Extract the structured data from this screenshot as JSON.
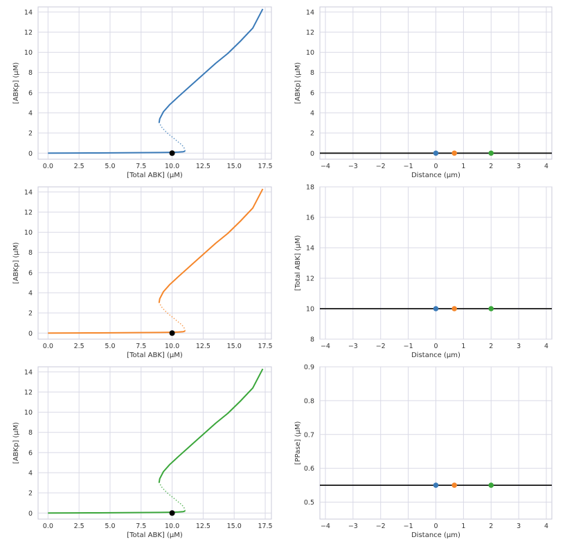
{
  "colors": {
    "series": [
      "#3a7ab8",
      "#f5862a",
      "#3aa63a"
    ],
    "line": "#111111",
    "steady_state": "#000000",
    "grid": "#d9d9e6",
    "frame": "#c8c8d8"
  },
  "chart_data": [
    {
      "type": "line",
      "color_index": 0,
      "xlabel": "[Total ABK] (μM)",
      "ylabel": "[ABKp] (μM)",
      "xlim": [
        -0.8,
        18
      ],
      "ylim": [
        -0.6,
        14.5
      ],
      "xticks": [
        0,
        2.5,
        5,
        7.5,
        10,
        12.5,
        15,
        17.5
      ],
      "xtick_labels": [
        "0.0",
        "2.5",
        "5.0",
        "7.5",
        "10.0",
        "12.5",
        "15.0",
        "17.5"
      ],
      "yticks": [
        0,
        2,
        4,
        6,
        8,
        10,
        12,
        14
      ],
      "ytick_labels": [
        "0",
        "2",
        "4",
        "6",
        "8",
        "10",
        "12",
        "14"
      ],
      "grid": true,
      "curves": {
        "lower_stable": [
          [
            0,
            0
          ],
          [
            2,
            0.01
          ],
          [
            4,
            0.02
          ],
          [
            6,
            0.03
          ],
          [
            8,
            0.05
          ],
          [
            9,
            0.06
          ],
          [
            10,
            0.08
          ],
          [
            10.5,
            0.1
          ],
          [
            10.9,
            0.14
          ],
          [
            11.05,
            0.2
          ]
        ],
        "middle_unstable": [
          [
            11.05,
            0.2
          ],
          [
            11,
            0.45
          ],
          [
            10.8,
            0.8
          ],
          [
            10.4,
            1.2
          ],
          [
            10,
            1.6
          ],
          [
            9.6,
            2.0
          ],
          [
            9.2,
            2.5
          ],
          [
            8.95,
            3.0
          ]
        ],
        "upper_stable": [
          [
            8.95,
            3.0
          ],
          [
            9.0,
            3.4
          ],
          [
            9.3,
            4.1
          ],
          [
            9.8,
            4.8
          ],
          [
            10.5,
            5.6
          ],
          [
            11.5,
            6.7
          ],
          [
            12.5,
            7.8
          ],
          [
            13.5,
            8.9
          ],
          [
            14.5,
            9.9
          ],
          [
            15.5,
            11.1
          ],
          [
            16.5,
            12.4
          ],
          [
            17.3,
            14.3
          ]
        ]
      },
      "steady_state_point": [
        10,
        0
      ]
    },
    {
      "type": "line",
      "xlabel": "Distance (μm)",
      "ylabel": "[ABKp] (μM)",
      "xlim": [
        -4.2,
        4.2
      ],
      "ylim": [
        -0.6,
        14.5
      ],
      "xticks": [
        -4,
        -3,
        -2,
        -1,
        0,
        1,
        2,
        3,
        4
      ],
      "xtick_labels": [
        "−4",
        "−3",
        "−2",
        "−1",
        "0",
        "1",
        "2",
        "3",
        "4"
      ],
      "yticks": [
        0,
        2,
        4,
        6,
        8,
        10,
        12,
        14
      ],
      "ytick_labels": [
        "0",
        "2",
        "4",
        "6",
        "8",
        "10",
        "12",
        "14"
      ],
      "grid": true,
      "profile": [
        [
          -4.2,
          0
        ],
        [
          4.2,
          0
        ]
      ],
      "points": [
        {
          "x": 0,
          "y": 0,
          "color_index": 0
        },
        {
          "x": 0.67,
          "y": 0,
          "color_index": 1
        },
        {
          "x": 2,
          "y": 0,
          "color_index": 2
        }
      ]
    },
    {
      "type": "line",
      "color_index": 1,
      "xlabel": "[Total ABK] (μM)",
      "ylabel": "[ABKp] (μM)",
      "xlim": [
        -0.8,
        18
      ],
      "ylim": [
        -0.6,
        14.5
      ],
      "xticks": [
        0,
        2.5,
        5,
        7.5,
        10,
        12.5,
        15,
        17.5
      ],
      "xtick_labels": [
        "0.0",
        "2.5",
        "5.0",
        "7.5",
        "10.0",
        "12.5",
        "15.0",
        "17.5"
      ],
      "yticks": [
        0,
        2,
        4,
        6,
        8,
        10,
        12,
        14
      ],
      "ytick_labels": [
        "0",
        "2",
        "4",
        "6",
        "8",
        "10",
        "12",
        "14"
      ],
      "grid": true,
      "curves": {
        "lower_stable": [
          [
            0,
            0
          ],
          [
            2,
            0.01
          ],
          [
            4,
            0.02
          ],
          [
            6,
            0.03
          ],
          [
            8,
            0.05
          ],
          [
            9,
            0.06
          ],
          [
            10,
            0.08
          ],
          [
            10.5,
            0.1
          ],
          [
            10.9,
            0.14
          ],
          [
            11.05,
            0.2
          ]
        ],
        "middle_unstable": [
          [
            11.05,
            0.2
          ],
          [
            11,
            0.45
          ],
          [
            10.8,
            0.8
          ],
          [
            10.4,
            1.2
          ],
          [
            10,
            1.6
          ],
          [
            9.6,
            2.0
          ],
          [
            9.2,
            2.5
          ],
          [
            8.95,
            3.0
          ]
        ],
        "upper_stable": [
          [
            8.95,
            3.0
          ],
          [
            9.0,
            3.4
          ],
          [
            9.3,
            4.1
          ],
          [
            9.8,
            4.8
          ],
          [
            10.5,
            5.6
          ],
          [
            11.5,
            6.7
          ],
          [
            12.5,
            7.8
          ],
          [
            13.5,
            8.9
          ],
          [
            14.5,
            9.9
          ],
          [
            15.5,
            11.1
          ],
          [
            16.5,
            12.4
          ],
          [
            17.3,
            14.3
          ]
        ]
      },
      "steady_state_point": [
        10,
        0
      ]
    },
    {
      "type": "line",
      "xlabel": "Distance (μm)",
      "ylabel": "[Total ABK] (μM)",
      "xlim": [
        -4.2,
        4.2
      ],
      "ylim": [
        8,
        18
      ],
      "xticks": [
        -4,
        -3,
        -2,
        -1,
        0,
        1,
        2,
        3,
        4
      ],
      "xtick_labels": [
        "−4",
        "−3",
        "−2",
        "−1",
        "0",
        "1",
        "2",
        "3",
        "4"
      ],
      "yticks": [
        8,
        10,
        12,
        14,
        16,
        18
      ],
      "ytick_labels": [
        "8",
        "10",
        "12",
        "14",
        "16",
        "18"
      ],
      "grid": true,
      "profile": [
        [
          -4.2,
          10
        ],
        [
          4.2,
          10
        ]
      ],
      "points": [
        {
          "x": 0,
          "y": 10,
          "color_index": 0
        },
        {
          "x": 0.67,
          "y": 10,
          "color_index": 1
        },
        {
          "x": 2,
          "y": 10,
          "color_index": 2
        }
      ]
    },
    {
      "type": "line",
      "color_index": 2,
      "xlabel": "[Total ABK] (μM)",
      "ylabel": "[ABKp] (μM)",
      "xlim": [
        -0.8,
        18
      ],
      "ylim": [
        -0.6,
        14.5
      ],
      "xticks": [
        0,
        2.5,
        5,
        7.5,
        10,
        12.5,
        15,
        17.5
      ],
      "xtick_labels": [
        "0.0",
        "2.5",
        "5.0",
        "7.5",
        "10.0",
        "12.5",
        "15.0",
        "17.5"
      ],
      "yticks": [
        0,
        2,
        4,
        6,
        8,
        10,
        12,
        14
      ],
      "ytick_labels": [
        "0",
        "2",
        "4",
        "6",
        "8",
        "10",
        "12",
        "14"
      ],
      "grid": true,
      "curves": {
        "lower_stable": [
          [
            0,
            0
          ],
          [
            2,
            0.01
          ],
          [
            4,
            0.02
          ],
          [
            6,
            0.03
          ],
          [
            8,
            0.05
          ],
          [
            9,
            0.06
          ],
          [
            10,
            0.08
          ],
          [
            10.5,
            0.1
          ],
          [
            10.9,
            0.14
          ],
          [
            11.05,
            0.2
          ]
        ],
        "middle_unstable": [
          [
            11.05,
            0.2
          ],
          [
            11,
            0.45
          ],
          [
            10.8,
            0.8
          ],
          [
            10.4,
            1.2
          ],
          [
            10,
            1.6
          ],
          [
            9.6,
            2.0
          ],
          [
            9.2,
            2.5
          ],
          [
            8.95,
            3.0
          ]
        ],
        "upper_stable": [
          [
            8.95,
            3.0
          ],
          [
            9.0,
            3.4
          ],
          [
            9.3,
            4.1
          ],
          [
            9.8,
            4.8
          ],
          [
            10.5,
            5.6
          ],
          [
            11.5,
            6.7
          ],
          [
            12.5,
            7.8
          ],
          [
            13.5,
            8.9
          ],
          [
            14.5,
            9.9
          ],
          [
            15.5,
            11.1
          ],
          [
            16.5,
            12.4
          ],
          [
            17.3,
            14.3
          ]
        ]
      },
      "steady_state_point": [
        10,
        0
      ]
    },
    {
      "type": "line",
      "xlabel": "Distance (μm)",
      "ylabel": "[PPase] (μM)",
      "xlim": [
        -4.2,
        4.2
      ],
      "ylim": [
        0.45,
        0.9
      ],
      "xticks": [
        -4,
        -3,
        -2,
        -1,
        0,
        1,
        2,
        3,
        4
      ],
      "xtick_labels": [
        "−4",
        "−3",
        "−2",
        "−1",
        "0",
        "1",
        "2",
        "3",
        "4"
      ],
      "yticks": [
        0.5,
        0.6,
        0.7,
        0.8,
        0.9
      ],
      "ytick_labels": [
        "0.5",
        "0.6",
        "0.7",
        "0.8",
        "0.9"
      ],
      "grid": true,
      "profile": [
        [
          -4.2,
          0.55
        ],
        [
          4.2,
          0.55
        ]
      ],
      "points": [
        {
          "x": 0,
          "y": 0.55,
          "color_index": 0
        },
        {
          "x": 0.67,
          "y": 0.55,
          "color_index": 1
        },
        {
          "x": 2,
          "y": 0.55,
          "color_index": 2
        }
      ]
    }
  ]
}
